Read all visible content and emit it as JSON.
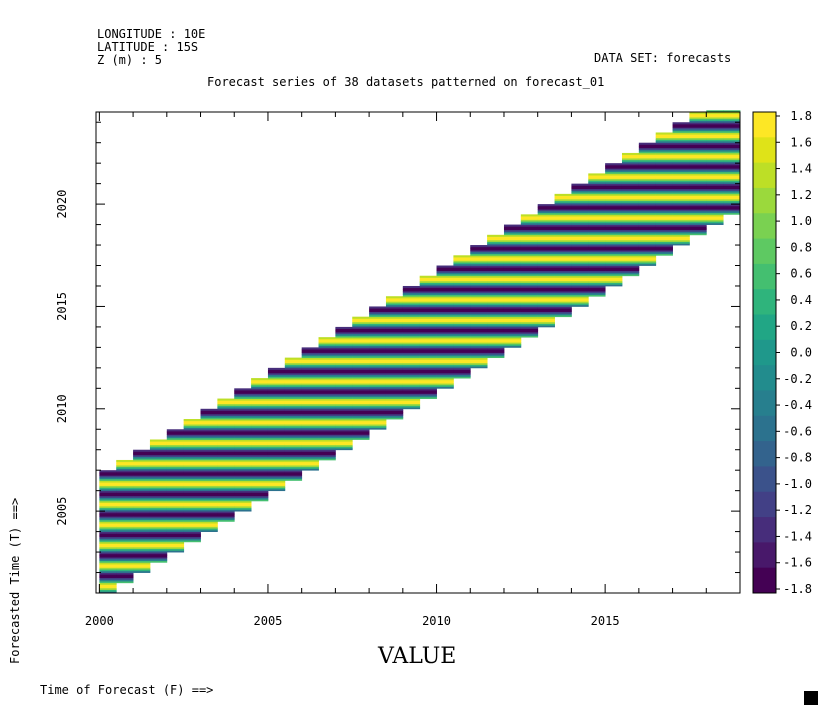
{
  "header": {
    "longitude": "LONGITUDE : 10E",
    "latitude": "LATITUDE : 15S",
    "depth": "Z (m) : 5",
    "dataset": "DATA SET: forecasts",
    "title": "Forecast series of 38 datasets patterned on forecast_01"
  },
  "axes": {
    "xlabel": "VALUE",
    "x_caption": "Time of Forecast (F) ==>",
    "ylabel": "Forecasted Time (T) ==>",
    "x_ticks": [
      "2000",
      "2005",
      "2010",
      "2015"
    ],
    "y_ticks": [
      "2005",
      "2010",
      "2015",
      "2020"
    ]
  },
  "colorbar": {
    "labels": [
      "1.8",
      "1.6",
      "1.4",
      "1.2",
      "1.0",
      "0.8",
      "0.6",
      "0.4",
      "0.2",
      "0.0",
      "-0.2",
      "-0.4",
      "-0.6",
      "-0.8",
      "-1.0",
      "-1.2",
      "-1.4",
      "-1.6",
      "-1.8"
    ],
    "colors": [
      "#fde725",
      "#dfe318",
      "#bddf26",
      "#9bd93c",
      "#7ad151",
      "#5ec962",
      "#44bf70",
      "#2fb47c",
      "#21a685",
      "#1f988b",
      "#228c8d",
      "#277f8e",
      "#2c728e",
      "#33638d",
      "#3b528b",
      "#424086",
      "#472d7b",
      "#48186a",
      "#440154"
    ]
  },
  "chart_data": {
    "type": "heatmap",
    "title": "Forecast series of 38 datasets patterned on forecast_01",
    "xlabel": "VALUE",
    "ylabel": "Forecasted Time (T) ==>",
    "x_range": [
      1999.9,
      2019.0
    ],
    "y_range": [
      2001.0,
      2024.5
    ],
    "forecast_start": 2000.0,
    "forecast_step_years": 0.5,
    "n_forecasts": 38,
    "forecast_length_years": 6.0,
    "value_range": [
      -1.8,
      1.8
    ],
    "pattern": "sinusoidal annual cycle along each forecast; yellow maxima near each mid-year, purple minima near each year start"
  }
}
